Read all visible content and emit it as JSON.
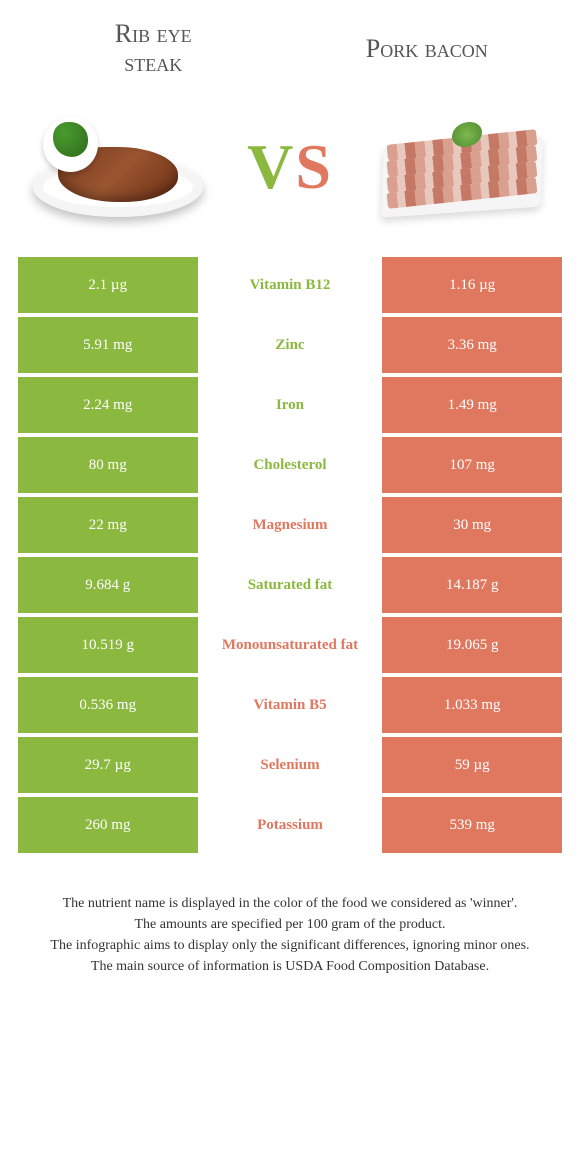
{
  "colors": {
    "green": "#8bb83f",
    "salmon": "#e07860",
    "text": "#333333",
    "white": "#ffffff"
  },
  "titles": {
    "left_line1": "Rib eye",
    "left_line2": "steak",
    "right": "Pork bacon"
  },
  "vs": {
    "v": "V",
    "s": "S"
  },
  "rows": [
    {
      "left": "2.1 µg",
      "mid": "Vitamin B12",
      "right": "1.16 µg",
      "winner": "left"
    },
    {
      "left": "5.91 mg",
      "mid": "Zinc",
      "right": "3.36 mg",
      "winner": "left"
    },
    {
      "left": "2.24 mg",
      "mid": "Iron",
      "right": "1.49 mg",
      "winner": "left"
    },
    {
      "left": "80 mg",
      "mid": "Cholesterol",
      "right": "107 mg",
      "winner": "left"
    },
    {
      "left": "22 mg",
      "mid": "Magnesium",
      "right": "30 mg",
      "winner": "right"
    },
    {
      "left": "9.684 g",
      "mid": "Saturated fat",
      "right": "14.187 g",
      "winner": "left"
    },
    {
      "left": "10.519 g",
      "mid": "Monounsaturated fat",
      "right": "19.065 g",
      "winner": "right"
    },
    {
      "left": "0.536 mg",
      "mid": "Vitamin B5",
      "right": "1.033 mg",
      "winner": "right"
    },
    {
      "left": "29.7 µg",
      "mid": "Selenium",
      "right": "59 µg",
      "winner": "right"
    },
    {
      "left": "260 mg",
      "mid": "Potassium",
      "right": "539 mg",
      "winner": "right"
    }
  ],
  "footer": {
    "line1": "The nutrient name is displayed in the color of the food we considered as 'winner'.",
    "line2": "The amounts are specified per 100 gram of the product.",
    "line3": "The infographic aims to display only the significant differences, ignoring minor ones.",
    "line4": "The main source of information is USDA Food Composition Database."
  }
}
